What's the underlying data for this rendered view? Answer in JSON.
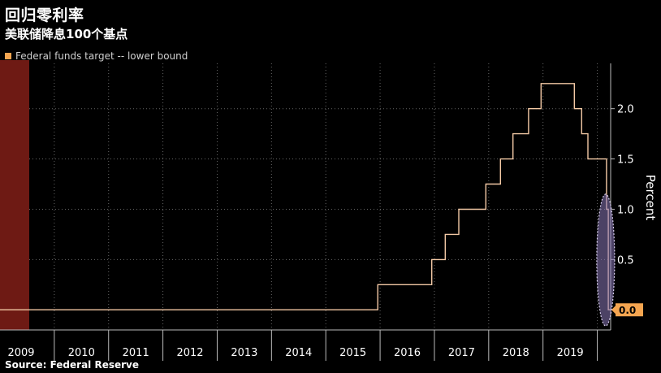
{
  "header": {
    "title": "回归零利率",
    "subtitle": "美联储降息100个基点"
  },
  "legend": {
    "label": "Federal funds target -- lower bound"
  },
  "source": "Source: Federal Reserve",
  "colors": {
    "line": "#f3c9a5",
    "swatch": "#f5a550",
    "recession_band": "#6e1a14",
    "highlight_ellipse": "#8a78b8",
    "current_badge": "#f5a550"
  },
  "chart_data": {
    "type": "line",
    "title": "回归零利率",
    "subtitle": "美联储降息100个基点",
    "xlabel": "",
    "ylabel": "Percent",
    "ylim": [
      -0.2,
      2.45
    ],
    "yticks": [
      0.5,
      1.0,
      1.5,
      2.0
    ],
    "ytick_labels": [
      "0.5",
      "1.0",
      "1.5",
      "2.0"
    ],
    "xlim": [
      "2009-01-01",
      "2020-03-31"
    ],
    "x_tick_labels": [
      "2009",
      "2010",
      "2011",
      "2012",
      "2013",
      "2014",
      "2015",
      "2016",
      "2017",
      "2018",
      "2019"
    ],
    "grid": true,
    "legend_position": "top-left",
    "current_value_label": "0.0",
    "series": [
      {
        "name": "Federal funds target -- lower bound",
        "x": [
          "2009-01-01",
          "2015-12-16",
          "2016-12-14",
          "2017-03-15",
          "2017-06-14",
          "2017-12-13",
          "2018-03-21",
          "2018-06-13",
          "2018-09-26",
          "2018-12-19",
          "2019-07-31",
          "2019-09-18",
          "2019-10-30",
          "2020-03-03",
          "2020-03-15",
          "2020-03-31"
        ],
        "values": [
          0.0,
          0.25,
          0.5,
          0.75,
          1.0,
          1.25,
          1.5,
          1.75,
          2.0,
          2.25,
          2.0,
          1.75,
          1.5,
          1.0,
          0.0,
          0.0
        ]
      }
    ],
    "shaded_regions": [
      {
        "start": "2009-01-01",
        "end": "2009-06-30"
      }
    ]
  }
}
